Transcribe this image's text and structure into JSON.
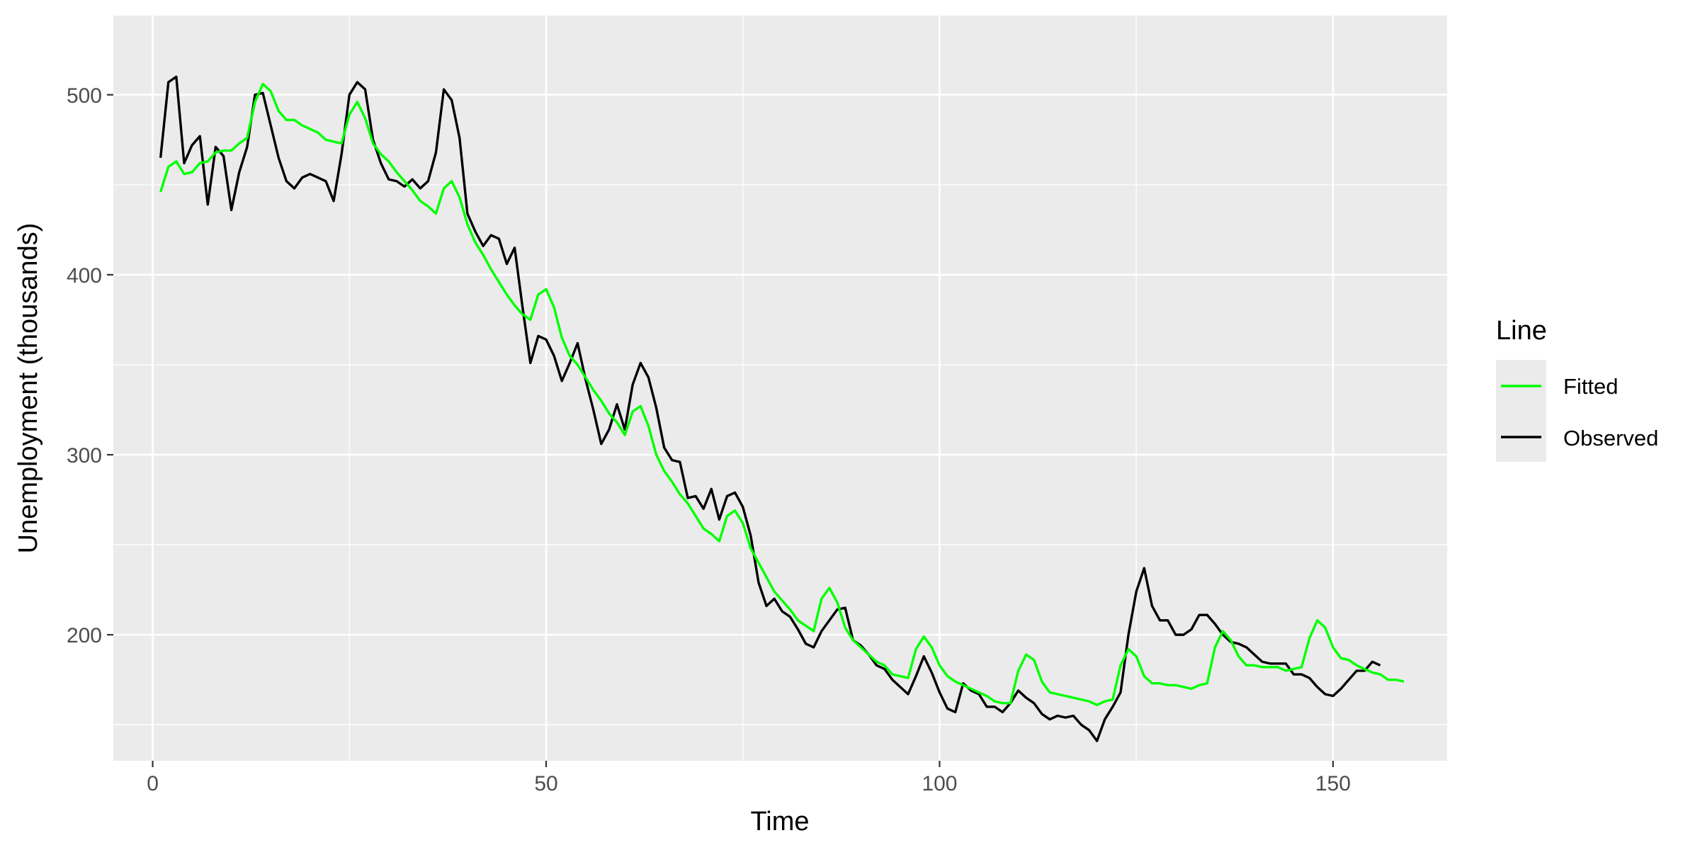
{
  "chart_data": {
    "type": "line",
    "title": "",
    "xlabel": "Time",
    "ylabel": "Unemployment (thousands)",
    "xlim": [
      -5,
      164.5
    ],
    "ylim": [
      130,
      544
    ],
    "x_ticks": [
      0,
      50,
      100,
      150
    ],
    "x_tick_labels": [
      "0",
      "50",
      "100",
      "150"
    ],
    "y_ticks": [
      200,
      300,
      400,
      500
    ],
    "y_tick_labels": [
      "200",
      "300",
      "400",
      "500"
    ],
    "grid": true,
    "legend": {
      "title": "Line",
      "position": "right"
    },
    "series": [
      {
        "name": "Fitted",
        "color": "#00ff00",
        "values": [
          446,
          460,
          463,
          456,
          457,
          462,
          463,
          468,
          469,
          469,
          473,
          476,
          496,
          506,
          502,
          491,
          486,
          486,
          483,
          481,
          479,
          475,
          474,
          473,
          489,
          496,
          487,
          473,
          467,
          463,
          457,
          452,
          447,
          441,
          438,
          434,
          448,
          452,
          443,
          428,
          418,
          411,
          403,
          396,
          389,
          383,
          378,
          375,
          389,
          392,
          382,
          365,
          355,
          350,
          343,
          336,
          330,
          323,
          318,
          311,
          324,
          327,
          316,
          300,
          291,
          285,
          278,
          273,
          266,
          259,
          256,
          252,
          266,
          269,
          262,
          248,
          240,
          232,
          224,
          219,
          214,
          208,
          205,
          202,
          220,
          226,
          218,
          204,
          197,
          193,
          189,
          185,
          183,
          178,
          177,
          176,
          192,
          199,
          193,
          183,
          177,
          174,
          172,
          170,
          168,
          166,
          163,
          162,
          162,
          180,
          189,
          186,
          174,
          168,
          167,
          166,
          165,
          164,
          163,
          161,
          163,
          164,
          183,
          192,
          188,
          177,
          173,
          173,
          172,
          172,
          171,
          170,
          172,
          173,
          193,
          202,
          197,
          188,
          183,
          183,
          182,
          182,
          182,
          180,
          181,
          182,
          198,
          208,
          204,
          193,
          187,
          186,
          183,
          181,
          179,
          178,
          175,
          175,
          174
        ]
      },
      {
        "name": "Observed",
        "color": "#000000",
        "values": [
          465,
          507,
          510,
          462,
          472,
          477,
          439,
          471,
          466,
          436,
          457,
          471,
          500,
          501,
          483,
          465,
          452,
          448,
          454,
          456,
          454,
          452,
          441,
          467,
          500,
          507,
          503,
          475,
          462,
          453,
          452,
          449,
          453,
          448,
          452,
          468,
          503,
          497,
          476,
          434,
          424,
          416,
          422,
          420,
          406,
          415,
          382,
          351,
          366,
          364,
          355,
          341,
          351,
          362,
          342,
          325,
          306,
          314,
          328,
          314,
          339,
          351,
          343,
          326,
          304,
          297,
          296,
          276,
          277,
          270,
          281,
          264,
          277,
          279,
          271,
          255,
          229,
          216,
          220,
          213,
          210,
          203,
          195,
          193,
          202,
          208,
          214,
          215,
          197,
          194,
          189,
          183,
          181,
          175,
          171,
          167,
          177,
          188,
          179,
          168,
          159,
          157,
          173,
          169,
          167,
          160,
          160,
          157,
          162,
          169,
          165,
          162,
          156,
          153,
          155,
          154,
          155,
          150,
          147,
          141,
          153,
          160,
          168,
          200,
          224,
          237,
          216,
          208,
          208,
          200,
          200,
          203,
          211,
          211,
          206,
          200,
          196,
          195,
          193,
          189,
          185,
          184,
          184,
          184,
          178,
          178,
          176,
          171,
          167,
          166,
          170,
          175,
          180,
          180,
          185,
          183
        ]
      }
    ]
  }
}
